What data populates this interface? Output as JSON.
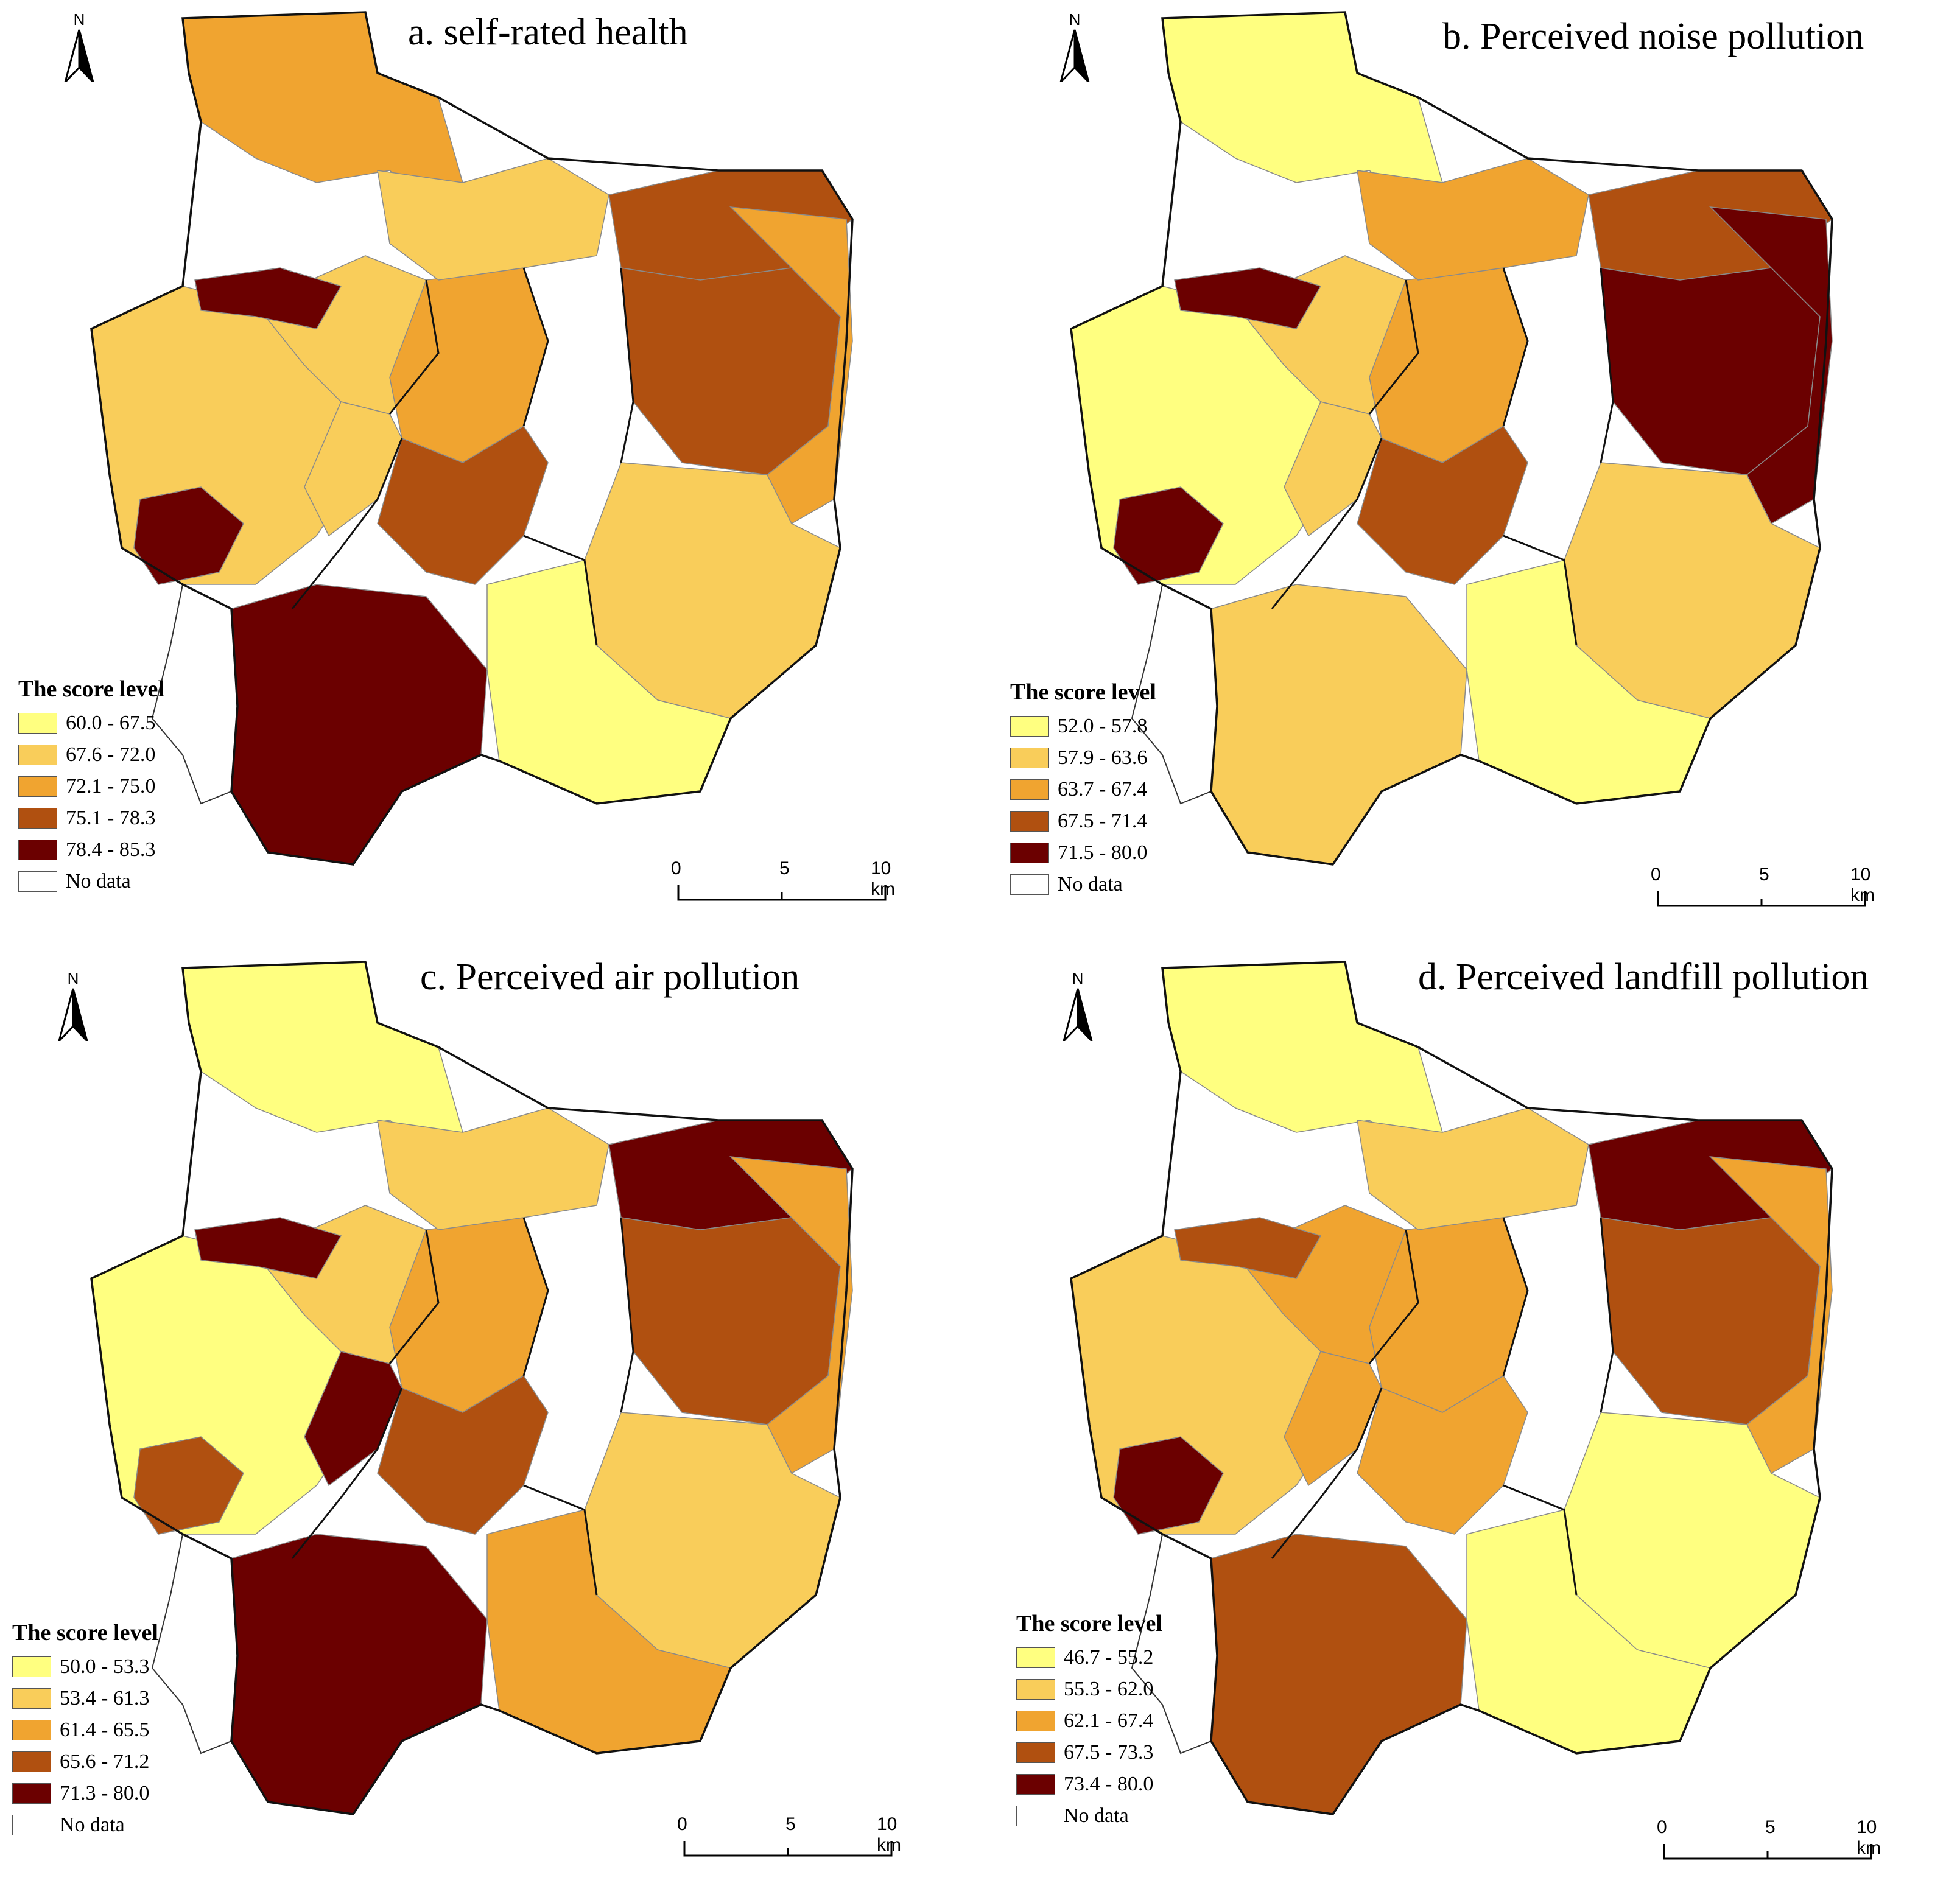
{
  "legend_title": "The score level",
  "no_data_label": "No data",
  "north_label": "N",
  "scale_labels": [
    "0",
    "5",
    "10 km"
  ],
  "colors": [
    "#ffff80",
    "#f9cd5a",
    "#f0a430",
    "#b05010",
    "#6b0000"
  ],
  "no_data_color": "#ffffff",
  "panels": [
    {
      "title": "a. self-rated health",
      "classes": [
        "60.0 - 67.5",
        "67.6 - 72.0",
        "72.1 - 75.0",
        "75.1 - 78.3",
        "78.4 - 85.3"
      ],
      "regions": {
        "north_strip": 3,
        "west": 2,
        "sw_small": 5,
        "south_big": 5,
        "central_w": 2,
        "central": 3,
        "north_mid": 2,
        "east_n": 4,
        "east_center": 4,
        "east_far": 3,
        "se": 2,
        "south_mid": 1,
        "river_w": 2,
        "nw_pocket": 5,
        "core": 4
      }
    },
    {
      "title": "b. Perceived noise pollution",
      "classes": [
        "52.0 - 57.8",
        "57.9 - 63.6",
        "63.7 - 67.4",
        "67.5 - 71.4",
        "71.5 - 80.0"
      ],
      "regions": {
        "north_strip": 1,
        "west": 1,
        "sw_small": 5,
        "south_big": 2,
        "central_w": 2,
        "central": 3,
        "north_mid": 3,
        "east_n": 4,
        "east_center": 5,
        "east_far": 5,
        "se": 2,
        "south_mid": 1,
        "river_w": 2,
        "nw_pocket": 5,
        "core": 4
      }
    },
    {
      "title": "c. Perceived air pollution",
      "classes": [
        "50.0 - 53.3",
        "53.4 - 61.3",
        "61.4 - 65.5",
        "65.6 - 71.2",
        "71.3 - 80.0"
      ],
      "regions": {
        "north_strip": 1,
        "west": 1,
        "sw_small": 4,
        "south_big": 5,
        "central_w": 2,
        "central": 3,
        "north_mid": 2,
        "east_n": 5,
        "east_center": 4,
        "east_far": 3,
        "se": 2,
        "south_mid": 3,
        "river_w": 5,
        "nw_pocket": 5,
        "core": 4
      }
    },
    {
      "title": "d. Perceived landfill pollution",
      "classes": [
        "46.7 - 55.2",
        "55.3 - 62.0",
        "62.1 - 67.4",
        "67.5 - 73.3",
        "73.4 - 80.0"
      ],
      "regions": {
        "north_strip": 1,
        "west": 2,
        "sw_small": 5,
        "south_big": 4,
        "central_w": 3,
        "central": 3,
        "north_mid": 2,
        "east_n": 5,
        "east_center": 4,
        "east_far": 3,
        "se": 1,
        "south_mid": 1,
        "river_w": 3,
        "nw_pocket": 4,
        "core": 3
      }
    }
  ]
}
